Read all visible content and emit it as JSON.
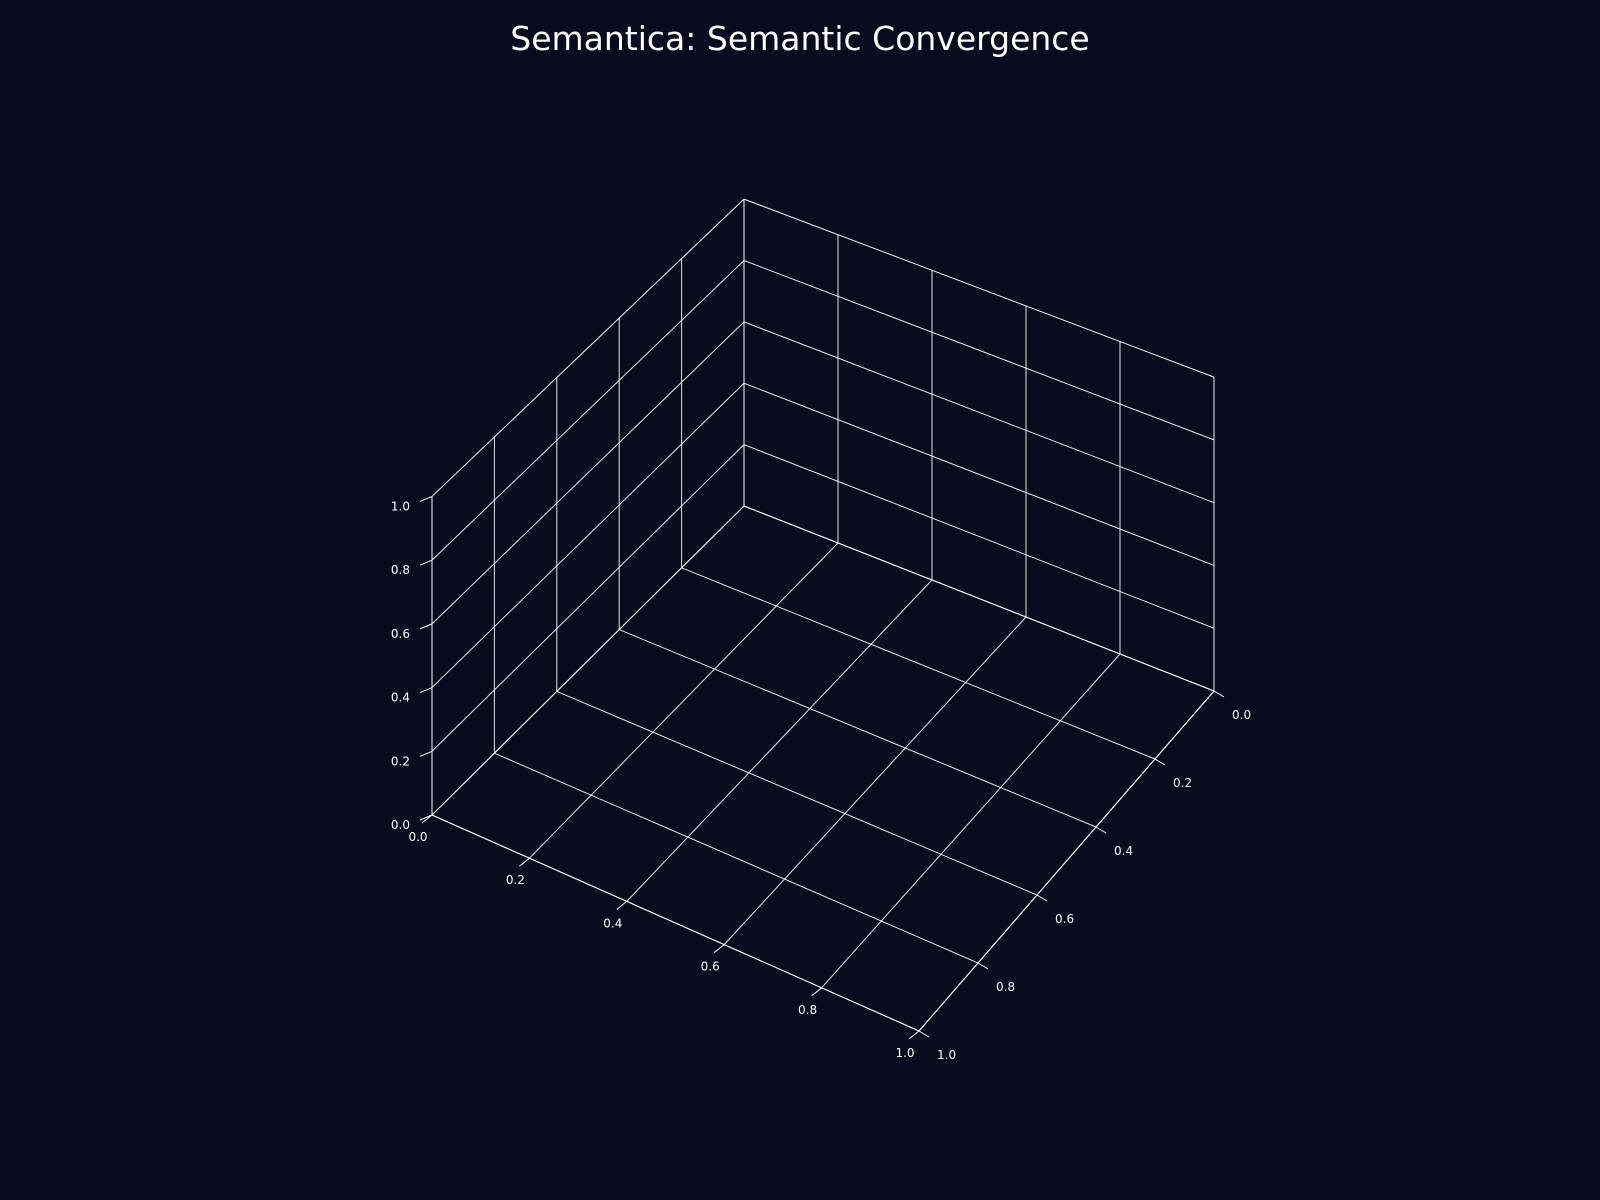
{
  "chart_data": {
    "type": "scatter",
    "projection": "3d",
    "title": "Semantica: Semantic Convergence",
    "xlabel": "",
    "ylabel": "",
    "zlabel": "",
    "xlim": [
      0,
      1
    ],
    "ylim": [
      0,
      1
    ],
    "zlim": [
      0,
      1
    ],
    "x_ticks": [
      "0.0",
      "0.2",
      "0.4",
      "0.6",
      "0.8",
      "1.0"
    ],
    "y_ticks": [
      "0.0",
      "0.2",
      "0.4",
      "0.6",
      "0.8",
      "1.0"
    ],
    "z_ticks": [
      "0.0",
      "0.2",
      "0.4",
      "0.6",
      "0.8",
      "1.0"
    ],
    "grid": true,
    "series": [],
    "colors": {
      "background": "#080a1d",
      "grid": "#ffffff",
      "text": "#ffffff"
    }
  }
}
